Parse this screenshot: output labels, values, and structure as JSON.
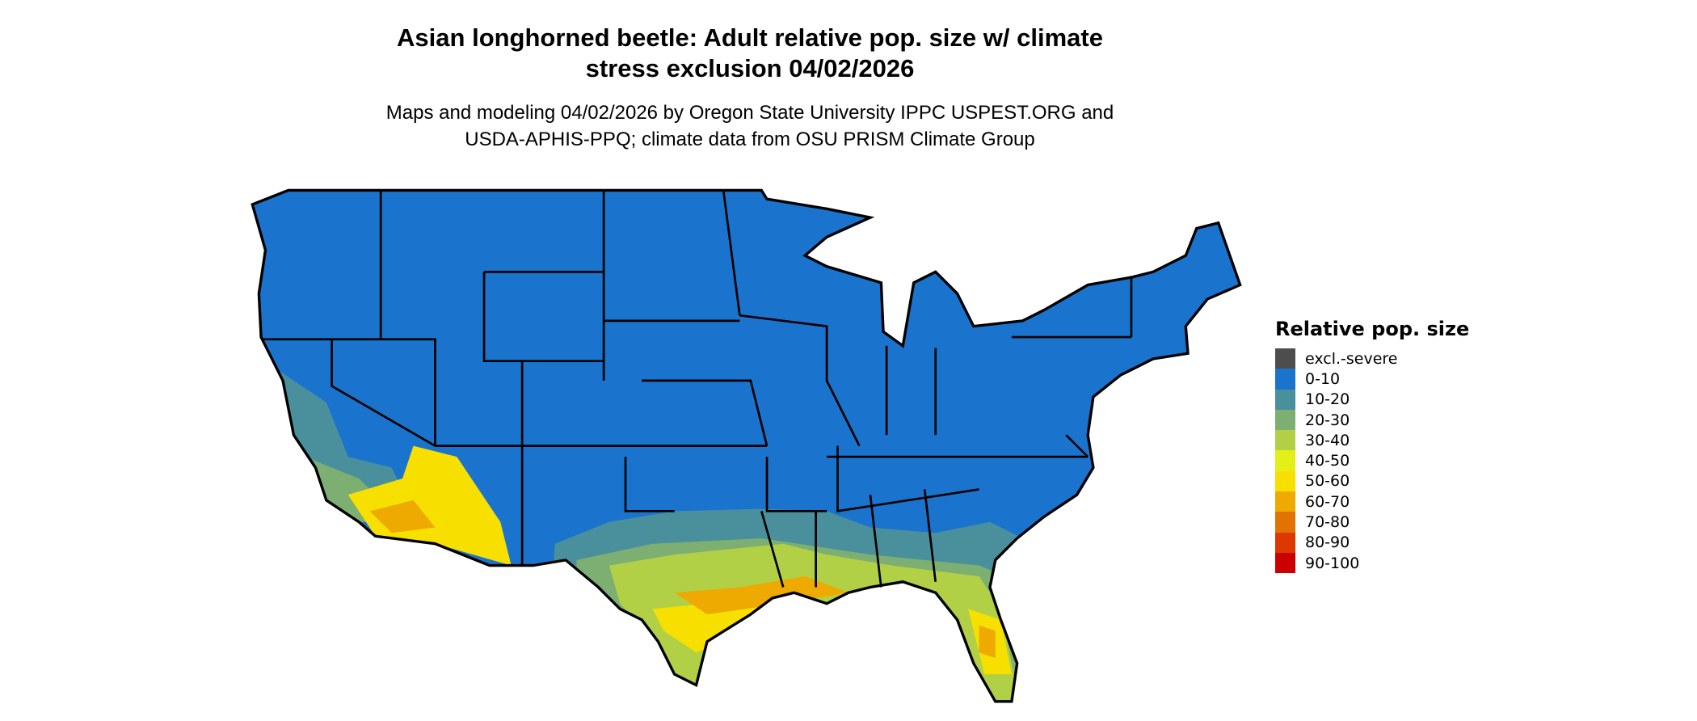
{
  "chart_data": {
    "type": "choropleth map",
    "title": "Asian longhorned beetle: Adult relative pop. size w/ climate stress exclusion 04/02/2026",
    "title_lines": [
      "Asian longhorned beetle: Adult relative pop. size w/ climate",
      "stress exclusion 04/02/2026"
    ],
    "subtitle_lines": [
      "Maps and modeling 04/02/2026 by Oregon State University IPPC USPEST.ORG and",
      "USDA-APHIS-PPQ; climate data from OSU PRISM Climate Group"
    ],
    "region": "Contiguous United States",
    "legend": {
      "title": "Relative pop. size",
      "placement": "right",
      "items": [
        {
          "label": "excl.-severe",
          "color": "#4d4d4d"
        },
        {
          "label": "0-10",
          "color": "#1a73cc"
        },
        {
          "label": "10-20",
          "color": "#4a909c"
        },
        {
          "label": "20-30",
          "color": "#7daf72"
        },
        {
          "label": "30-40",
          "color": "#b1d045"
        },
        {
          "label": "40-50",
          "color": "#e4ef18"
        },
        {
          "label": "50-60",
          "color": "#f7e000"
        },
        {
          "label": "60-70",
          "color": "#eeaa00"
        },
        {
          "label": "70-80",
          "color": "#e37300"
        },
        {
          "label": "80-90",
          "color": "#dc3800"
        },
        {
          "label": "90-100",
          "color": "#cc0000"
        }
      ]
    }
  }
}
